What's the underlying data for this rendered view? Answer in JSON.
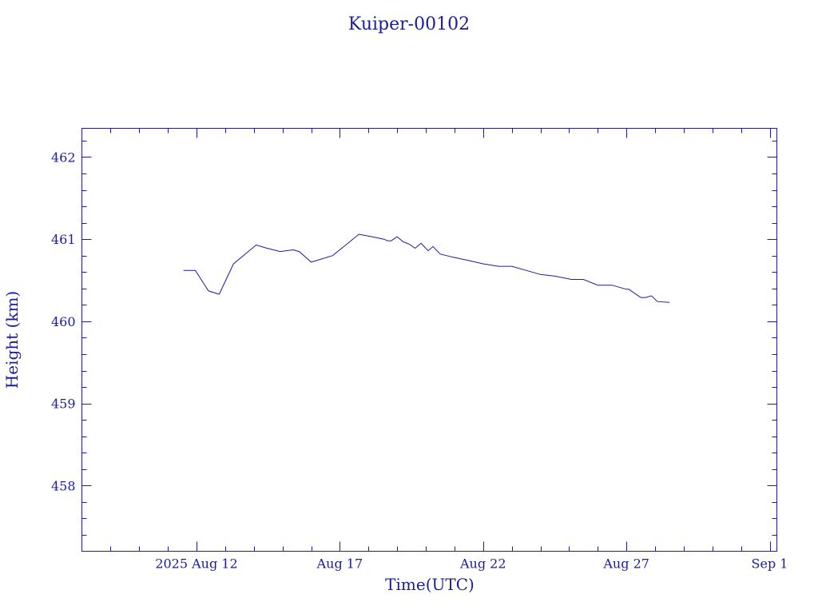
{
  "chart_data": {
    "type": "line",
    "title": "Kuiper-00102",
    "xlabel": "Time(UTC)",
    "ylabel": "Height (km)",
    "xlim": [
      "2025-08-08T00:00",
      "2025-09-01T06:00"
    ],
    "ylim": [
      457.2,
      462.35
    ],
    "x_ticks": [
      {
        "date": "2025-08-12",
        "label": "2025 Aug 12"
      },
      {
        "date": "2025-08-17",
        "label": "Aug 17"
      },
      {
        "date": "2025-08-22",
        "label": "Aug 22"
      },
      {
        "date": "2025-08-27",
        "label": "Aug 27"
      },
      {
        "date": "2025-09-01",
        "label": "Sep  1"
      }
    ],
    "y_ticks": [
      458,
      459,
      460,
      461,
      462
    ],
    "grid": false,
    "colors": {
      "axis": "#1c1c9c",
      "line": "#1c1c9c",
      "text": "#1c1c9c"
    },
    "series": [
      {
        "x": [
          "2025-08-11T13:00",
          "2025-08-11T23:00",
          "2025-08-12T10:00",
          "2025-08-12T19:00",
          "2025-08-13T07:00",
          "2025-08-14T02:00",
          "2025-08-14T11:00",
          "2025-08-14T22:00",
          "2025-08-15T09:00",
          "2025-08-15T14:00",
          "2025-08-16T00:00",
          "2025-08-16T18:00",
          "2025-08-17T05:00",
          "2025-08-17T16:00",
          "2025-08-18T03:00",
          "2025-08-18T13:00",
          "2025-08-18T16:00",
          "2025-08-18T19:00",
          "2025-08-19T00:00",
          "2025-08-19T05:00",
          "2025-08-19T10:00",
          "2025-08-19T15:00",
          "2025-08-19T20:00",
          "2025-08-20T02:00",
          "2025-08-20T06:00",
          "2025-08-20T12:00",
          "2025-08-20T23:00",
          "2025-08-21T12:00",
          "2025-08-22T00:00",
          "2025-08-22T13:00",
          "2025-08-23T00:00",
          "2025-08-23T12:00",
          "2025-08-24T00:00",
          "2025-08-24T12:00",
          "2025-08-25T02:00",
          "2025-08-25T12:00",
          "2025-08-26T00:00",
          "2025-08-26T12:00",
          "2025-08-27T00:00",
          "2025-08-27T02:00",
          "2025-08-27T12:00",
          "2025-08-27T16:00",
          "2025-08-27T21:00",
          "2025-08-28T02:00",
          "2025-08-28T12:00"
        ],
        "y": [
          460.62,
          460.62,
          460.37,
          460.33,
          460.7,
          460.93,
          460.89,
          460.85,
          460.87,
          460.85,
          460.72,
          460.8,
          460.93,
          461.06,
          461.03,
          461.0,
          460.98,
          460.98,
          461.03,
          460.97,
          460.94,
          460.89,
          460.95,
          460.86,
          460.91,
          460.82,
          460.78,
          460.74,
          460.7,
          460.67,
          460.67,
          460.62,
          460.57,
          460.55,
          460.51,
          460.51,
          460.44,
          460.44,
          460.39,
          460.39,
          460.29,
          460.29,
          460.31,
          460.24,
          460.23
        ]
      }
    ]
  }
}
